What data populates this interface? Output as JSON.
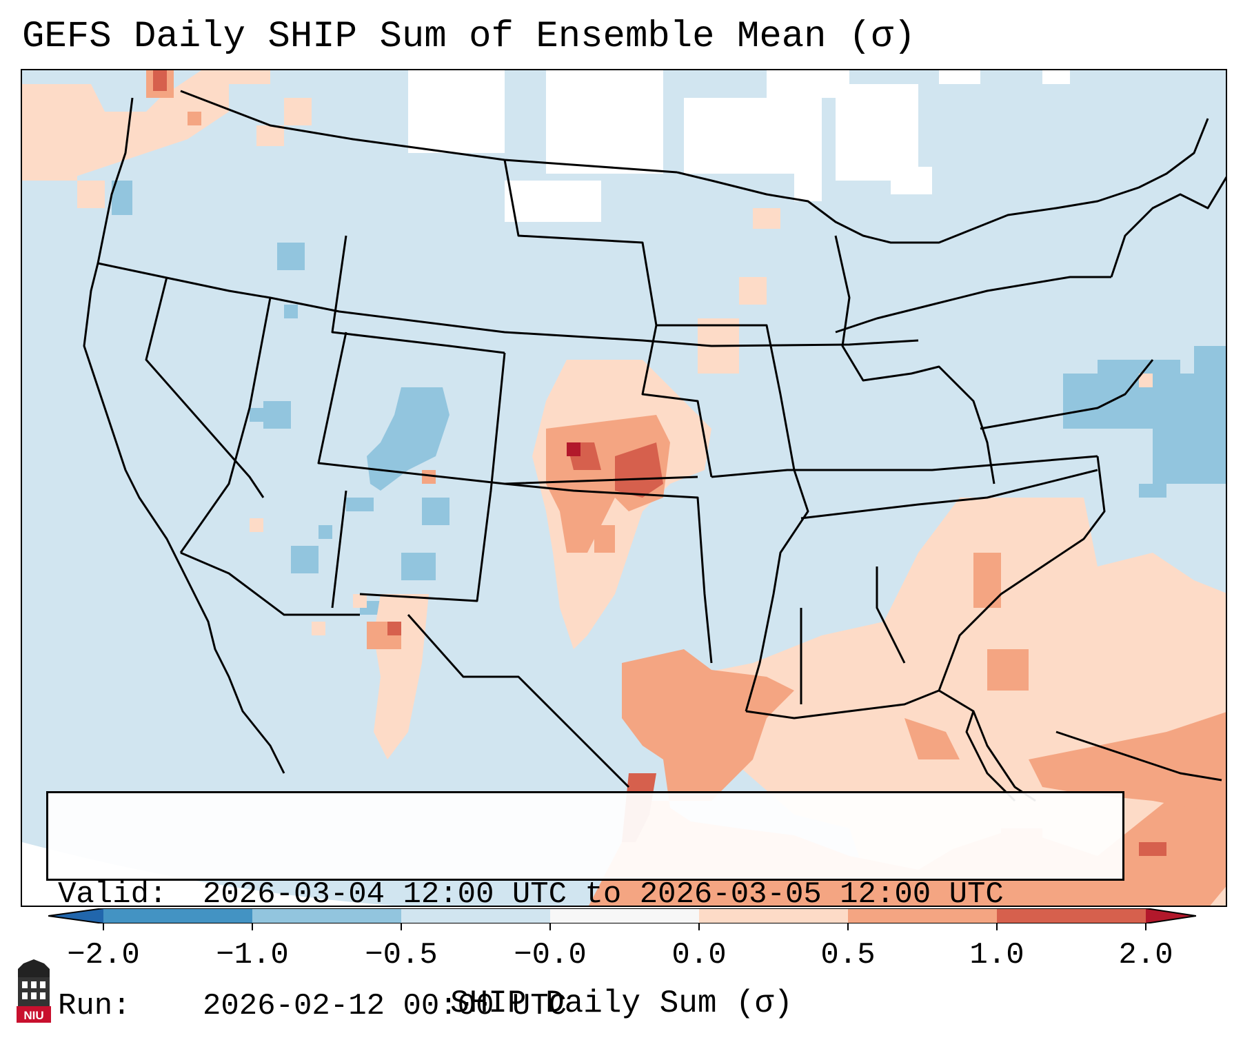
{
  "title": "GEFS Daily SHIP Sum of Ensemble Mean (σ)",
  "info": {
    "valid_label": "Valid:",
    "valid_value": "2026-03-04 12:00 UTC to 2026-03-05 12:00 UTC",
    "run_label": "Run:",
    "run_value": "2026-02-12 00:00 UTC"
  },
  "colorbar": {
    "label": "SHIP Daily Sum (σ)",
    "ticks": [
      "−2.0",
      "−1.0",
      "−0.5",
      "−0.0",
      "0.0",
      "0.5",
      "1.0",
      "2.0"
    ],
    "bins": [
      {
        "from": -2.0,
        "to": -1.0,
        "color": "#4393c3"
      },
      {
        "from": -1.0,
        "to": -0.5,
        "color": "#92c5de"
      },
      {
        "from": -0.5,
        "to": -0.0,
        "color": "#d1e5f0"
      },
      {
        "from": -0.0,
        "to": 0.0,
        "color": "#f7f7f7"
      },
      {
        "from": 0.0,
        "to": 0.5,
        "color": "#fddbc7"
      },
      {
        "from": 0.5,
        "to": 1.0,
        "color": "#f4a582"
      },
      {
        "from": 1.0,
        "to": 2.0,
        "color": "#d6604d"
      }
    ],
    "under_color": "#2166ac",
    "over_color": "#b2182b"
  },
  "colors": {
    "ocean_neutral": "#d1e5f0",
    "light_blue": "#92c5de",
    "light_red": "#fddbc7",
    "mid_red": "#f4a582",
    "strong_red": "#d6604d",
    "extreme_red": "#b2182b",
    "border": "#000000"
  },
  "logo": {
    "text": "NIU",
    "icon": "university-tower-icon"
  }
}
